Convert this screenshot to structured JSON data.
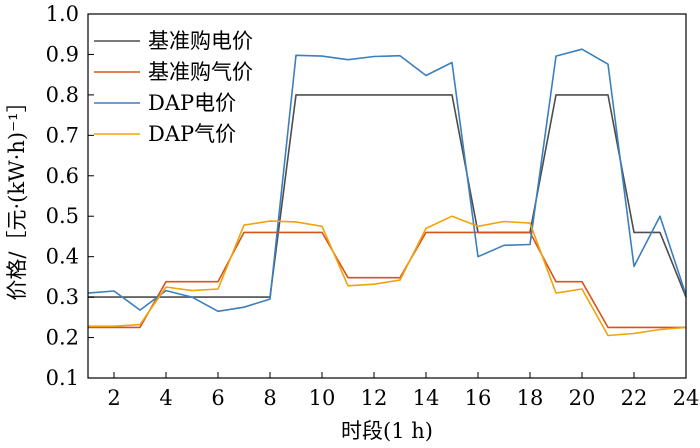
{
  "chart_data": {
    "type": "line",
    "title": "",
    "xlabel": "时段(1 h)",
    "ylabel": "价格/［元·(kW·h)⁻¹］",
    "x": [
      1,
      2,
      3,
      4,
      5,
      6,
      7,
      8,
      9,
      10,
      11,
      12,
      13,
      14,
      15,
      16,
      17,
      18,
      19,
      20,
      21,
      22,
      23,
      24
    ],
    "xticks": [
      2,
      4,
      6,
      8,
      10,
      12,
      14,
      16,
      18,
      20,
      22,
      24
    ],
    "xlim": [
      1,
      24
    ],
    "ylim": [
      0.1,
      1.0
    ],
    "yticks": [
      0.1,
      0.2,
      0.3,
      0.4,
      0.5,
      0.6,
      0.7,
      0.8,
      0.9,
      1.0
    ],
    "ytick_labels": [
      "0.1",
      "0.2",
      "0.3",
      "0.4",
      "0.5",
      "0.6",
      "0.7",
      "0.8",
      "0.9",
      "1.0"
    ],
    "grid": false,
    "legend_position": "top-left",
    "series": [
      {
        "name": "基准购电价",
        "color": "#4d4d4d",
        "values": [
          0.3,
          0.3,
          0.3,
          0.3,
          0.3,
          0.3,
          0.3,
          0.3,
          0.8,
          0.8,
          0.8,
          0.8,
          0.8,
          0.8,
          0.8,
          0.46,
          0.46,
          0.46,
          0.8,
          0.8,
          0.8,
          0.46,
          0.46,
          0.3
        ]
      },
      {
        "name": "基准购气价",
        "color": "#d95319",
        "values": [
          0.225,
          0.225,
          0.225,
          0.338,
          0.338,
          0.338,
          0.46,
          0.46,
          0.46,
          0.46,
          0.348,
          0.348,
          0.348,
          0.46,
          0.46,
          0.46,
          0.46,
          0.46,
          0.338,
          0.338,
          0.225,
          0.225,
          0.225,
          0.225
        ]
      },
      {
        "name": "DAP电价",
        "color": "#3c7fbf",
        "values": [
          0.31,
          0.315,
          0.268,
          0.316,
          0.3,
          0.265,
          0.275,
          0.295,
          0.898,
          0.896,
          0.887,
          0.895,
          0.897,
          0.848,
          0.88,
          0.4,
          0.428,
          0.43,
          0.896,
          0.913,
          0.876,
          0.376,
          0.5,
          0.305
        ]
      },
      {
        "name": "DAP气价",
        "color": "#f0a30a",
        "values": [
          0.228,
          0.228,
          0.232,
          0.325,
          0.316,
          0.32,
          0.478,
          0.488,
          0.486,
          0.475,
          0.328,
          0.332,
          0.342,
          0.47,
          0.5,
          0.475,
          0.487,
          0.483,
          0.31,
          0.32,
          0.205,
          0.21,
          0.22,
          0.225
        ]
      }
    ]
  }
}
